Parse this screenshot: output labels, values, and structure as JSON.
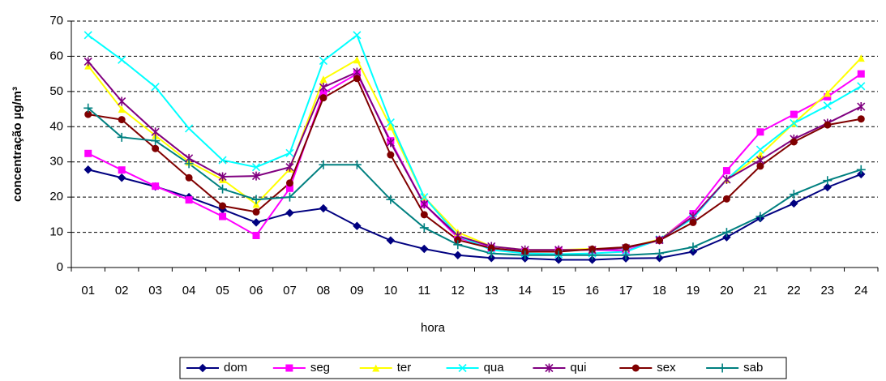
{
  "chart_data": {
    "type": "line",
    "xlabel": "hora",
    "ylabel": "concentração µg/m³",
    "categories": [
      "01",
      "02",
      "03",
      "04",
      "05",
      "06",
      "07",
      "08",
      "09",
      "10",
      "11",
      "12",
      "13",
      "14",
      "15",
      "16",
      "17",
      "18",
      "19",
      "20",
      "21",
      "22",
      "23",
      "24"
    ],
    "ylim": [
      0,
      70
    ],
    "yticks": [
      0,
      10,
      20,
      30,
      40,
      50,
      60,
      70
    ],
    "grid": true,
    "legend": "bottom",
    "series": [
      {
        "name": "dom",
        "color": "#000080",
        "marker": "diamond",
        "values": [
          27.8,
          25.5,
          23,
          20,
          16.5,
          12.8,
          15.5,
          16.8,
          11.8,
          7.7,
          5.3,
          3.5,
          2.7,
          2.6,
          2.2,
          2.2,
          2.6,
          2.7,
          4.5,
          8.6,
          14,
          18.2,
          22.8,
          26.5
        ]
      },
      {
        "name": "seg",
        "color": "#ff00ff",
        "marker": "square",
        "values": [
          32.4,
          27.7,
          23.1,
          19.2,
          14.5,
          9.1,
          22.5,
          49.5,
          55,
          36,
          18,
          8.5,
          5.5,
          4.5,
          4.8,
          5,
          4.8,
          7.8,
          15.3,
          27.5,
          38.5,
          43.5,
          48.5,
          55
        ]
      },
      {
        "name": "ter",
        "color": "#ffff00",
        "marker": "triangle",
        "values": [
          57.3,
          45,
          37.5,
          30,
          25,
          18,
          28,
          53.5,
          59,
          40,
          20,
          10,
          6,
          5,
          5,
          5.3,
          5.5,
          8,
          14.5,
          25,
          32,
          41,
          49.5,
          59.5
        ]
      },
      {
        "name": "qua",
        "color": "#00ffff",
        "marker": "x",
        "values": [
          66,
          59,
          51.3,
          39.5,
          30.5,
          28.5,
          32.5,
          58.7,
          66,
          41.2,
          20,
          9,
          5,
          4,
          3.8,
          4,
          4.5,
          8,
          14,
          25,
          33.5,
          41,
          46,
          51.5
        ]
      },
      {
        "name": "qui",
        "color": "#800080",
        "marker": "asterisk",
        "values": [
          58.5,
          47.2,
          38.5,
          31,
          25.8,
          26,
          28.5,
          51.2,
          55.5,
          35.5,
          18,
          9,
          6,
          5,
          5,
          5,
          5.5,
          7.8,
          14.5,
          25,
          30.5,
          36.5,
          41,
          45.7
        ]
      },
      {
        "name": "sex",
        "color": "#800000",
        "marker": "circle",
        "values": [
          43.5,
          42,
          33.8,
          25.5,
          17.5,
          15.8,
          24,
          48.2,
          53.7,
          32,
          15,
          7.8,
          5.5,
          4.5,
          4.5,
          5.2,
          5.8,
          7.7,
          12.8,
          19.5,
          28.8,
          35.7,
          40.5,
          42.2
        ]
      },
      {
        "name": "sab",
        "color": "#008080",
        "marker": "plus",
        "values": [
          45.3,
          37,
          36,
          29.5,
          22.3,
          19.3,
          20,
          29.2,
          29.2,
          19.3,
          11.3,
          6.5,
          4,
          3.5,
          3.5,
          3.5,
          3.5,
          4,
          5.8,
          10,
          14.5,
          20.8,
          24.7,
          27.8
        ]
      }
    ]
  }
}
